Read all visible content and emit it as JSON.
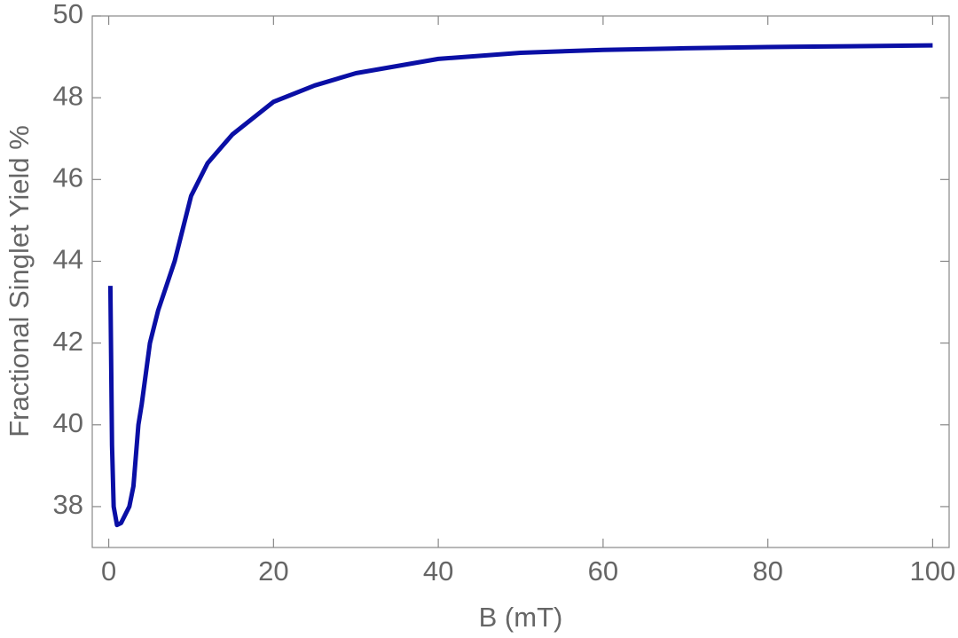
{
  "chart_data": {
    "type": "line",
    "x_label": "B (mT)",
    "y_label": "Fractional Singlet Yield %",
    "xlim": [
      -2,
      102
    ],
    "ylim": [
      37,
      50
    ],
    "xticks": [
      0,
      20,
      40,
      60,
      80,
      100
    ],
    "yticks": [
      38,
      40,
      42,
      44,
      46,
      48,
      50
    ],
    "x": [
      0.2,
      0.4,
      0.6,
      1,
      1.5,
      2,
      2.5,
      3,
      3.6,
      4,
      5,
      6,
      7,
      8,
      10,
      12,
      15,
      20,
      25,
      30,
      40,
      50,
      60,
      70,
      80,
      90,
      100
    ],
    "series": [
      {
        "color": "#0a0fa5",
        "values": [
          43.4,
          39.5,
          38.0,
          37.55,
          37.6,
          37.8,
          38.0,
          38.5,
          40.0,
          40.5,
          42.0,
          42.8,
          43.4,
          44.0,
          45.6,
          46.4,
          47.1,
          47.9,
          48.3,
          48.6,
          48.95,
          49.1,
          49.17,
          49.21,
          49.24,
          49.26,
          49.28
        ]
      }
    ]
  }
}
